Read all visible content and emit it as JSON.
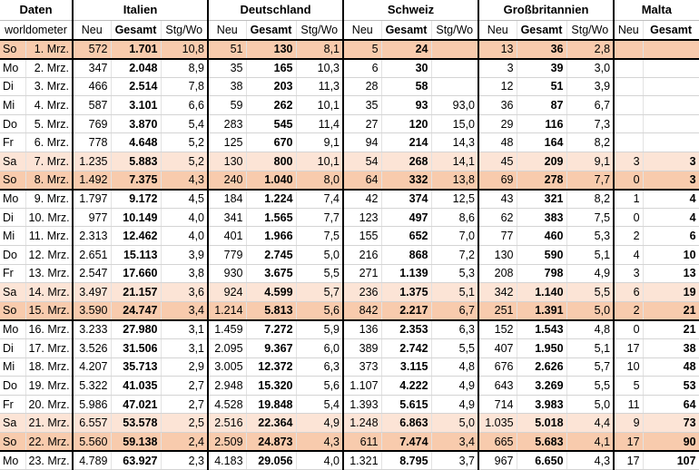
{
  "header": {
    "date_label": "Daten",
    "source_label": "worldometer",
    "countries": [
      "Italien",
      "Deutschland",
      "Schweiz",
      "Großbritannien",
      "Malta"
    ],
    "col_neu": "Neu",
    "col_gesamt": "Gesamt",
    "col_stg": "Stg/Wo"
  },
  "rows": [
    {
      "day": "So",
      "date": "1. Mrz.",
      "cells": [
        "572",
        "1.701",
        "10,8",
        "51",
        "130",
        "8,1",
        "5",
        "24",
        "",
        "13",
        "36",
        "2,8",
        "",
        ""
      ]
    },
    {
      "day": "Mo",
      "date": "2. Mrz.",
      "cells": [
        "347",
        "2.048",
        "8,9",
        "35",
        "165",
        "10,3",
        "6",
        "30",
        "",
        "3",
        "39",
        "3,0",
        "",
        ""
      ]
    },
    {
      "day": "Di",
      "date": "3. Mrz.",
      "cells": [
        "466",
        "2.514",
        "7,8",
        "38",
        "203",
        "11,3",
        "28",
        "58",
        "",
        "12",
        "51",
        "3,9",
        "",
        ""
      ]
    },
    {
      "day": "Mi",
      "date": "4. Mrz.",
      "cells": [
        "587",
        "3.101",
        "6,6",
        "59",
        "262",
        "10,1",
        "35",
        "93",
        "93,0",
        "36",
        "87",
        "6,7",
        "",
        ""
      ]
    },
    {
      "day": "Do",
      "date": "5. Mrz.",
      "cells": [
        "769",
        "3.870",
        "5,4",
        "283",
        "545",
        "11,4",
        "27",
        "120",
        "15,0",
        "29",
        "116",
        "7,3",
        "",
        ""
      ]
    },
    {
      "day": "Fr",
      "date": "6. Mrz.",
      "cells": [
        "778",
        "4.648",
        "5,2",
        "125",
        "670",
        "9,1",
        "94",
        "214",
        "14,3",
        "48",
        "164",
        "8,2",
        "",
        ""
      ]
    },
    {
      "day": "Sa",
      "date": "7. Mrz.",
      "cells": [
        "1.235",
        "5.883",
        "5,2",
        "130",
        "800",
        "10,1",
        "54",
        "268",
        "14,1",
        "45",
        "209",
        "9,1",
        "3",
        "3"
      ]
    },
    {
      "day": "So",
      "date": "8. Mrz.",
      "cells": [
        "1.492",
        "7.375",
        "4,3",
        "240",
        "1.040",
        "8,0",
        "64",
        "332",
        "13,8",
        "69",
        "278",
        "7,7",
        "0",
        "3"
      ]
    },
    {
      "day": "Mo",
      "date": "9. Mrz.",
      "cells": [
        "1.797",
        "9.172",
        "4,5",
        "184",
        "1.224",
        "7,4",
        "42",
        "374",
        "12,5",
        "43",
        "321",
        "8,2",
        "1",
        "4"
      ]
    },
    {
      "day": "Di",
      "date": "10. Mrz.",
      "cells": [
        "977",
        "10.149",
        "4,0",
        "341",
        "1.565",
        "7,7",
        "123",
        "497",
        "8,6",
        "62",
        "383",
        "7,5",
        "0",
        "4"
      ]
    },
    {
      "day": "Mi",
      "date": "11. Mrz.",
      "cells": [
        "2.313",
        "12.462",
        "4,0",
        "401",
        "1.966",
        "7,5",
        "155",
        "652",
        "7,0",
        "77",
        "460",
        "5,3",
        "2",
        "6"
      ]
    },
    {
      "day": "Do",
      "date": "12. Mrz.",
      "cells": [
        "2.651",
        "15.113",
        "3,9",
        "779",
        "2.745",
        "5,0",
        "216",
        "868",
        "7,2",
        "130",
        "590",
        "5,1",
        "4",
        "10"
      ]
    },
    {
      "day": "Fr",
      "date": "13. Mrz.",
      "cells": [
        "2.547",
        "17.660",
        "3,8",
        "930",
        "3.675",
        "5,5",
        "271",
        "1.139",
        "5,3",
        "208",
        "798",
        "4,9",
        "3",
        "13"
      ]
    },
    {
      "day": "Sa",
      "date": "14. Mrz.",
      "cells": [
        "3.497",
        "21.157",
        "3,6",
        "924",
        "4.599",
        "5,7",
        "236",
        "1.375",
        "5,1",
        "342",
        "1.140",
        "5,5",
        "6",
        "19"
      ]
    },
    {
      "day": "So",
      "date": "15. Mrz.",
      "cells": [
        "3.590",
        "24.747",
        "3,4",
        "1.214",
        "5.813",
        "5,6",
        "842",
        "2.217",
        "6,7",
        "251",
        "1.391",
        "5,0",
        "2",
        "21"
      ]
    },
    {
      "day": "Mo",
      "date": "16. Mrz.",
      "cells": [
        "3.233",
        "27.980",
        "3,1",
        "1.459",
        "7.272",
        "5,9",
        "136",
        "2.353",
        "6,3",
        "152",
        "1.543",
        "4,8",
        "0",
        "21"
      ]
    },
    {
      "day": "Di",
      "date": "17. Mrz.",
      "cells": [
        "3.526",
        "31.506",
        "3,1",
        "2.095",
        "9.367",
        "6,0",
        "389",
        "2.742",
        "5,5",
        "407",
        "1.950",
        "5,1",
        "17",
        "38"
      ]
    },
    {
      "day": "Mi",
      "date": "18. Mrz.",
      "cells": [
        "4.207",
        "35.713",
        "2,9",
        "3.005",
        "12.372",
        "6,3",
        "373",
        "3.115",
        "4,8",
        "676",
        "2.626",
        "5,7",
        "10",
        "48"
      ]
    },
    {
      "day": "Do",
      "date": "19. Mrz.",
      "cells": [
        "5.322",
        "41.035",
        "2,7",
        "2.948",
        "15.320",
        "5,6",
        "1.107",
        "4.222",
        "4,9",
        "643",
        "3.269",
        "5,5",
        "5",
        "53"
      ]
    },
    {
      "day": "Fr",
      "date": "20. Mrz.",
      "cells": [
        "5.986",
        "47.021",
        "2,7",
        "4.528",
        "19.848",
        "5,4",
        "1.393",
        "5.615",
        "4,9",
        "714",
        "3.983",
        "5,0",
        "11",
        "64"
      ]
    },
    {
      "day": "Sa",
      "date": "21. Mrz.",
      "cells": [
        "6.557",
        "53.578",
        "2,5",
        "2.516",
        "22.364",
        "4,9",
        "1.248",
        "6.863",
        "5,0",
        "1.035",
        "5.018",
        "4,4",
        "9",
        "73"
      ]
    },
    {
      "day": "So",
      "date": "22. Mrz.",
      "cells": [
        "5.560",
        "59.138",
        "2,4",
        "2.509",
        "24.873",
        "4,3",
        "611",
        "7.474",
        "3,4",
        "665",
        "5.683",
        "4,1",
        "17",
        "90"
      ]
    },
    {
      "day": "Mo",
      "date": "23. Mrz.",
      "cells": [
        "4.789",
        "63.927",
        "2,3",
        "4.183",
        "29.056",
        "4,0",
        "1.321",
        "8.795",
        "3,7",
        "967",
        "6.650",
        "4,3",
        "17",
        "107"
      ]
    }
  ]
}
